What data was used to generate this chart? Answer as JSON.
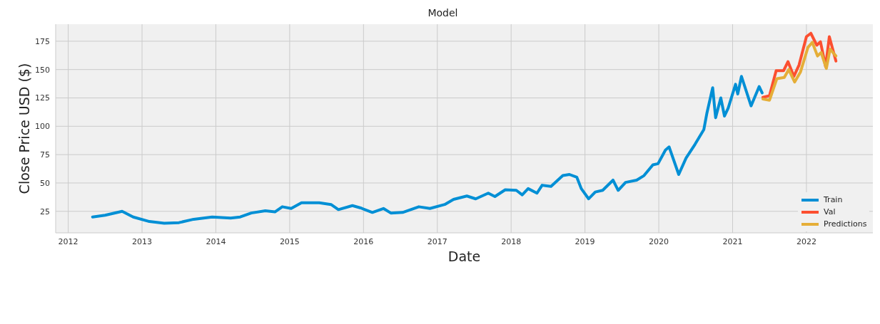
{
  "chart_data": {
    "type": "line",
    "title": "Model",
    "xlabel": "Date",
    "ylabel": "Close Price USD ($)",
    "xlim": [
      2011.83,
      2022.9
    ],
    "xticks": [
      2012,
      2013,
      2014,
      2015,
      2016,
      2017,
      2018,
      2019,
      2020,
      2021,
      2022
    ],
    "ylim": [
      6,
      190
    ],
    "yticks": [
      25,
      50,
      75,
      100,
      125,
      150,
      175
    ],
    "grid": true,
    "legend": "bottom right",
    "marker": "none",
    "line_style": "solid",
    "series": [
      {
        "name": "Train",
        "color": "#008fd5",
        "x": [
          2012.33,
          2012.5,
          2012.73,
          2012.88,
          2013.1,
          2013.3,
          2013.5,
          2013.7,
          2013.95,
          2014.2,
          2014.33,
          2014.48,
          2014.67,
          2014.8,
          2014.9,
          2015.02,
          2015.16,
          2015.4,
          2015.56,
          2015.66,
          2015.85,
          2015.96,
          2016.12,
          2016.27,
          2016.37,
          2016.53,
          2016.75,
          2016.9,
          2017.1,
          2017.22,
          2017.4,
          2017.52,
          2017.69,
          2017.78,
          2017.92,
          2018.07,
          2018.15,
          2018.23,
          2018.35,
          2018.42,
          2018.54,
          2018.7,
          2018.79,
          2018.89,
          2018.95,
          2019.05,
          2019.14,
          2019.24,
          2019.38,
          2019.45,
          2019.55,
          2019.7,
          2019.8,
          2019.92,
          2019.99,
          2020.09,
          2020.14,
          2020.27,
          2020.37,
          2020.49,
          2020.61,
          2020.65,
          2020.73,
          2020.77,
          2020.84,
          2020.89,
          2020.94,
          2021.04,
          2021.07,
          2021.12,
          2021.25,
          2021.36,
          2021.4
        ],
        "values": [
          20,
          21.5,
          25,
          20,
          16,
          14.5,
          15,
          18,
          20,
          19,
          20,
          23.5,
          25.5,
          24.5,
          29,
          27.5,
          32.5,
          32.5,
          31,
          26.5,
          30,
          28,
          24,
          27.5,
          23.5,
          24,
          29,
          27.5,
          31,
          35.5,
          38.5,
          36,
          41,
          38,
          44,
          43.5,
          39.5,
          45,
          41,
          48,
          47,
          56.5,
          57.5,
          55,
          45,
          36,
          42,
          43.5,
          52.5,
          43.5,
          50.5,
          52.5,
          56.5,
          66,
          67,
          79,
          81.8,
          57.5,
          72,
          84,
          97,
          111,
          134,
          107.5,
          125,
          109,
          116,
          137,
          128.5,
          144,
          118,
          135,
          129.5
        ]
      },
      {
        "name": "Val",
        "color": "#fc4f30",
        "x": [
          2021.41,
          2021.5,
          2021.59,
          2021.69,
          2021.75,
          2021.83,
          2021.9,
          2022.0,
          2022.06,
          2022.14,
          2022.19,
          2022.26,
          2022.31,
          2022.4
        ],
        "values": [
          125.5,
          127,
          149,
          149,
          157,
          144,
          154,
          179,
          182,
          171.5,
          174.5,
          152.5,
          179,
          157.5
        ]
      },
      {
        "name": "Predictions",
        "color": "#e5ae38",
        "x": [
          2021.41,
          2021.5,
          2021.6,
          2021.7,
          2021.76,
          2021.84,
          2021.92,
          2022.02,
          2022.08,
          2022.15,
          2022.2,
          2022.27,
          2022.32,
          2022.4
        ],
        "values": [
          124,
          123,
          142,
          143,
          150,
          139,
          148,
          169.5,
          174,
          162,
          165,
          151,
          168,
          162
        ]
      }
    ]
  }
}
